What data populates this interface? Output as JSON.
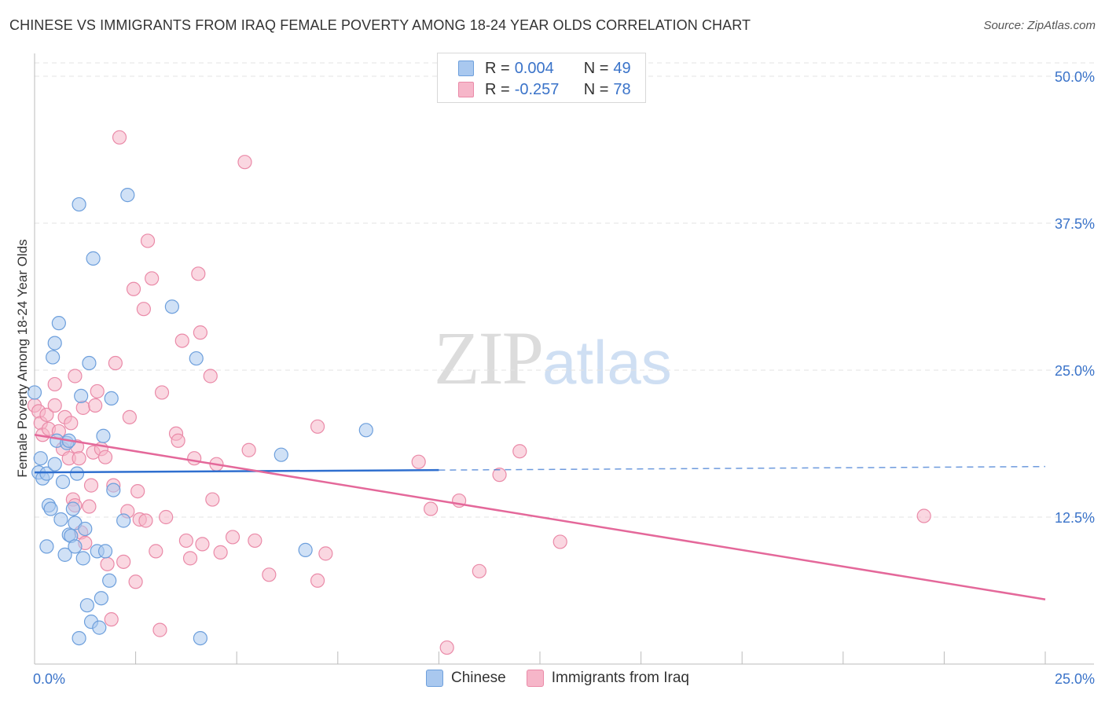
{
  "title": "CHINESE VS IMMIGRANTS FROM IRAQ FEMALE POVERTY AMONG 18-24 YEAR OLDS CORRELATION CHART",
  "source": "Source: ZipAtlas.com",
  "watermark": {
    "zip": "ZIP",
    "atlas": "atlas"
  },
  "legend": {
    "rows": [
      {
        "r_label": "R =",
        "r_value": "0.004",
        "n_label": "N =",
        "n_value": "49",
        "color": "#a9c8ef"
      },
      {
        "r_label": "R =",
        "r_value": "-0.257",
        "n_label": "N =",
        "n_value": "78",
        "color": "#f6b6c9"
      }
    ]
  },
  "bottom_legend": [
    {
      "label": "Chinese",
      "color": "#a9c8ef"
    },
    {
      "label": "Immigrants from Iraq",
      "color": "#f6b6c9"
    }
  ],
  "colors": {
    "chinese_fill": "#a9c8ef",
    "chinese_stroke": "#6d9fdc",
    "chinese_line": "#2f6fcf",
    "iraq_fill": "#f6b6c9",
    "iraq_stroke": "#ea8aa8",
    "iraq_line": "#e4689a",
    "grid": "#e3e3e3",
    "tick_text": "#3a73c9"
  },
  "chart_data": {
    "type": "scatter",
    "title": "CHINESE VS IMMIGRANTS FROM IRAQ FEMALE POVERTY AMONG 18-24 YEAR OLDS CORRELATION CHART",
    "xlabel": "",
    "ylabel": "Female Poverty Among 18-24 Year Olds",
    "xlim": [
      0,
      25
    ],
    "ylim": [
      0,
      50
    ],
    "x_tick_labels": [
      {
        "value": 0,
        "label": "0.0%"
      },
      {
        "value": 25,
        "label": "25.0%"
      }
    ],
    "y_tick_labels": [
      {
        "value": 12.5,
        "label": "12.5%"
      },
      {
        "value": 25,
        "label": "25.0%"
      },
      {
        "value": 37.5,
        "label": "37.5%"
      },
      {
        "value": 50,
        "label": "50.0%"
      }
    ],
    "series": [
      {
        "name": "Chinese",
        "r": 0.004,
        "n": 49,
        "trend": {
          "x_start": 0,
          "y_start": 16.3,
          "x_solid_end": 10,
          "y_solid_end": 16.5,
          "x_end": 25,
          "y_end": 16.8
        },
        "points": [
          [
            0.0,
            23.1
          ],
          [
            0.1,
            16.3
          ],
          [
            0.15,
            17.5
          ],
          [
            0.2,
            15.8
          ],
          [
            0.3,
            16.2
          ],
          [
            0.35,
            13.5
          ],
          [
            0.4,
            13.2
          ],
          [
            0.45,
            26.1
          ],
          [
            0.5,
            17.0
          ],
          [
            0.5,
            27.3
          ],
          [
            0.55,
            19.0
          ],
          [
            0.6,
            29.0
          ],
          [
            0.65,
            12.3
          ],
          [
            0.7,
            15.5
          ],
          [
            0.75,
            9.3
          ],
          [
            0.8,
            18.8
          ],
          [
            0.85,
            19.0
          ],
          [
            0.85,
            11.0
          ],
          [
            0.9,
            10.9
          ],
          [
            0.95,
            13.2
          ],
          [
            1.0,
            12.0
          ],
          [
            1.05,
            16.2
          ],
          [
            1.1,
            39.1
          ],
          [
            1.1,
            2.2
          ],
          [
            1.15,
            22.8
          ],
          [
            1.2,
            9.0
          ],
          [
            1.25,
            11.5
          ],
          [
            1.3,
            5.0
          ],
          [
            1.35,
            25.6
          ],
          [
            1.4,
            3.6
          ],
          [
            1.45,
            34.5
          ],
          [
            1.55,
            9.6
          ],
          [
            1.6,
            3.1
          ],
          [
            1.65,
            5.6
          ],
          [
            1.7,
            19.4
          ],
          [
            1.75,
            9.6
          ],
          [
            1.85,
            7.1
          ],
          [
            1.9,
            22.6
          ],
          [
            1.95,
            14.8
          ],
          [
            2.2,
            12.2
          ],
          [
            2.3,
            39.9
          ],
          [
            3.4,
            30.4
          ],
          [
            4.0,
            26.0
          ],
          [
            4.1,
            2.2
          ],
          [
            6.1,
            17.8
          ],
          [
            6.7,
            9.7
          ],
          [
            8.2,
            19.9
          ],
          [
            1.0,
            10.0
          ],
          [
            0.3,
            10.0
          ]
        ]
      },
      {
        "name": "Immigrants from Iraq",
        "r": -0.257,
        "n": 78,
        "trend": {
          "x_start": 0,
          "y_start": 19.5,
          "x_end": 25,
          "y_end": 5.5
        },
        "points": [
          [
            0.0,
            22.0
          ],
          [
            0.1,
            21.5
          ],
          [
            0.15,
            20.5
          ],
          [
            0.2,
            19.5
          ],
          [
            0.3,
            21.2
          ],
          [
            0.35,
            20.0
          ],
          [
            0.5,
            22.0
          ],
          [
            0.5,
            23.8
          ],
          [
            0.6,
            19.8
          ],
          [
            0.7,
            18.3
          ],
          [
            0.75,
            21.0
          ],
          [
            0.85,
            17.5
          ],
          [
            0.9,
            20.5
          ],
          [
            0.95,
            14.0
          ],
          [
            1.0,
            24.5
          ],
          [
            1.05,
            18.5
          ],
          [
            1.1,
            17.5
          ],
          [
            1.15,
            11.2
          ],
          [
            1.2,
            21.8
          ],
          [
            1.25,
            10.3
          ],
          [
            1.35,
            13.4
          ],
          [
            1.4,
            15.2
          ],
          [
            1.45,
            18.0
          ],
          [
            1.5,
            22.0
          ],
          [
            1.55,
            23.2
          ],
          [
            1.65,
            18.3
          ],
          [
            1.75,
            17.6
          ],
          [
            1.8,
            8.5
          ],
          [
            1.9,
            3.8
          ],
          [
            1.95,
            15.2
          ],
          [
            2.0,
            25.6
          ],
          [
            2.1,
            44.8
          ],
          [
            2.2,
            8.7
          ],
          [
            2.3,
            13.0
          ],
          [
            2.35,
            21.0
          ],
          [
            2.45,
            31.9
          ],
          [
            2.5,
            7.0
          ],
          [
            2.55,
            14.7
          ],
          [
            2.6,
            12.3
          ],
          [
            2.7,
            30.2
          ],
          [
            2.75,
            12.2
          ],
          [
            2.8,
            36.0
          ],
          [
            2.9,
            32.8
          ],
          [
            3.0,
            9.6
          ],
          [
            3.1,
            2.9
          ],
          [
            3.15,
            23.1
          ],
          [
            3.25,
            12.5
          ],
          [
            3.5,
            19.6
          ],
          [
            3.55,
            19.0
          ],
          [
            3.65,
            27.5
          ],
          [
            3.75,
            10.5
          ],
          [
            3.85,
            9.0
          ],
          [
            3.95,
            17.5
          ],
          [
            4.05,
            33.2
          ],
          [
            4.1,
            28.2
          ],
          [
            4.15,
            10.2
          ],
          [
            4.35,
            24.5
          ],
          [
            4.4,
            14.0
          ],
          [
            4.5,
            17.0
          ],
          [
            4.6,
            9.5
          ],
          [
            4.9,
            10.8
          ],
          [
            5.2,
            42.7
          ],
          [
            5.3,
            18.2
          ],
          [
            5.45,
            10.5
          ],
          [
            5.8,
            7.6
          ],
          [
            7.0,
            7.1
          ],
          [
            7.0,
            20.2
          ],
          [
            7.2,
            9.4
          ],
          [
            9.5,
            17.2
          ],
          [
            9.8,
            13.2
          ],
          [
            10.2,
            1.4
          ],
          [
            10.5,
            13.9
          ],
          [
            11.0,
            7.9
          ],
          [
            11.5,
            16.1
          ],
          [
            12.0,
            18.1
          ],
          [
            13.0,
            10.4
          ],
          [
            22.0,
            12.6
          ],
          [
            1.0,
            13.5
          ]
        ]
      }
    ]
  }
}
